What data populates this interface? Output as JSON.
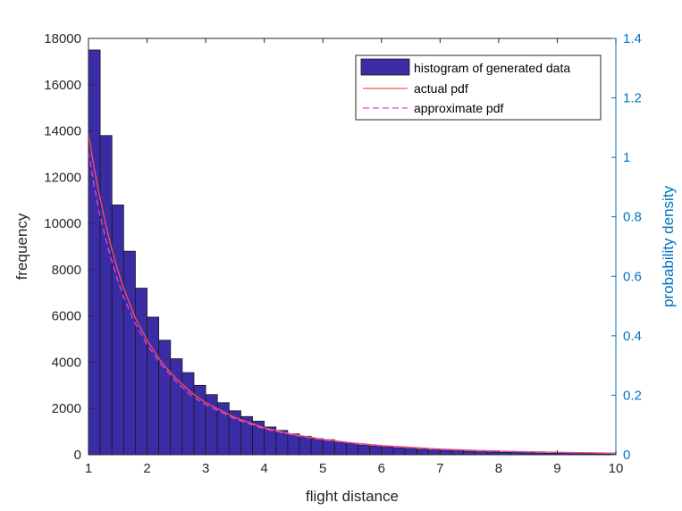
{
  "chart_data": {
    "type": "bar",
    "xlabel": "flight distance",
    "ylabel_left": "frequency",
    "ylabel_right": "probability density",
    "xlim": [
      1,
      10
    ],
    "ylim_left": [
      0,
      18000
    ],
    "ylim_right": [
      0,
      1.4
    ],
    "x_ticks": [
      "1",
      "2",
      "3",
      "4",
      "5",
      "6",
      "7",
      "8",
      "9",
      "10"
    ],
    "y_ticks_left": [
      "0",
      "2000",
      "4000",
      "6000",
      "8000",
      "10000",
      "12000",
      "14000",
      "16000",
      "18000"
    ],
    "y_ticks_right": [
      "0",
      "0.2",
      "0.4",
      "0.6",
      "0.8",
      "1",
      "1.2",
      "1.4"
    ],
    "legend_position": "top-right",
    "legend": [
      "histogram of generated data",
      "actual pdf",
      "approximate pdf"
    ],
    "histogram": {
      "name": "histogram of generated data",
      "bin_edges_start": 1.0,
      "bin_width": 0.2,
      "counts": [
        17500,
        13800,
        10800,
        8800,
        7200,
        5950,
        4950,
        4150,
        3550,
        3000,
        2600,
        2250,
        1900,
        1650,
        1450,
        1200,
        1050,
        900,
        800,
        700,
        650,
        550,
        480,
        420,
        380,
        340,
        300,
        270,
        240,
        210,
        190,
        170,
        150,
        130,
        120,
        105,
        95,
        85,
        75,
        65,
        58,
        52,
        46,
        40,
        35
      ],
      "color": "#3a2ca5"
    },
    "series": [
      {
        "name": "actual pdf",
        "axis": "right",
        "style": "solid",
        "color": "#ff5050",
        "x": [
          1.0,
          1.1,
          1.2,
          1.3,
          1.4,
          1.5,
          1.6,
          1.8,
          2.0,
          2.25,
          2.5,
          2.75,
          3.0,
          3.5,
          4.0,
          4.5,
          5.0,
          5.5,
          6.0,
          7.0,
          8.0,
          9.0,
          10.0
        ],
        "y": [
          1.08,
          0.96,
          0.86,
          0.77,
          0.69,
          0.62,
          0.56,
          0.46,
          0.385,
          0.31,
          0.255,
          0.21,
          0.175,
          0.125,
          0.09,
          0.068,
          0.052,
          0.04,
          0.031,
          0.019,
          0.012,
          0.008,
          0.005
        ]
      },
      {
        "name": "approximate pdf",
        "axis": "right",
        "style": "dashed",
        "color": "#e040e0",
        "x": [
          1.0,
          1.1,
          1.2,
          1.3,
          1.4,
          1.5,
          1.6,
          1.8,
          2.0,
          2.25,
          2.5,
          2.75,
          3.0,
          3.5,
          4.0,
          4.5,
          5.0,
          5.5,
          6.0,
          7.0,
          8.0,
          9.0,
          10.0
        ],
        "y": [
          1.02,
          0.9,
          0.8,
          0.72,
          0.65,
          0.585,
          0.53,
          0.44,
          0.37,
          0.3,
          0.245,
          0.2,
          0.168,
          0.12,
          0.087,
          0.066,
          0.05,
          0.039,
          0.03,
          0.018,
          0.012,
          0.008,
          0.005
        ]
      }
    ],
    "colors": {
      "left_axis": "#262626",
      "right_axis": "#0072bd"
    }
  }
}
